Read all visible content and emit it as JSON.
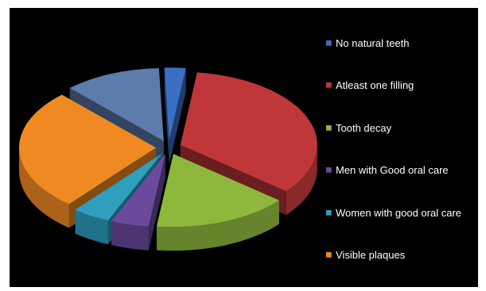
{
  "chart_data": {
    "type": "pie",
    "title": "",
    "legend_position": "right",
    "slices": [
      {
        "label": "No natural teeth",
        "value": 2.5,
        "color": "#3a6fc4"
      },
      {
        "label": "Atleast one filling",
        "value": 34,
        "color": "#c0373a"
      },
      {
        "label": "Tooth decay",
        "value": 16,
        "color": "#8db83c"
      },
      {
        "label": "Men with Good oral care",
        "value": 4.5,
        "color": "#6a4a9c"
      },
      {
        "label": "Women  with good oral care",
        "value": 4.5,
        "color": "#2e9fbd"
      },
      {
        "label": "Visible plaques",
        "value": 27,
        "color": "#ef8a23"
      },
      {
        "label": "",
        "value": 11.5,
        "color": "#5d7bab"
      }
    ]
  }
}
